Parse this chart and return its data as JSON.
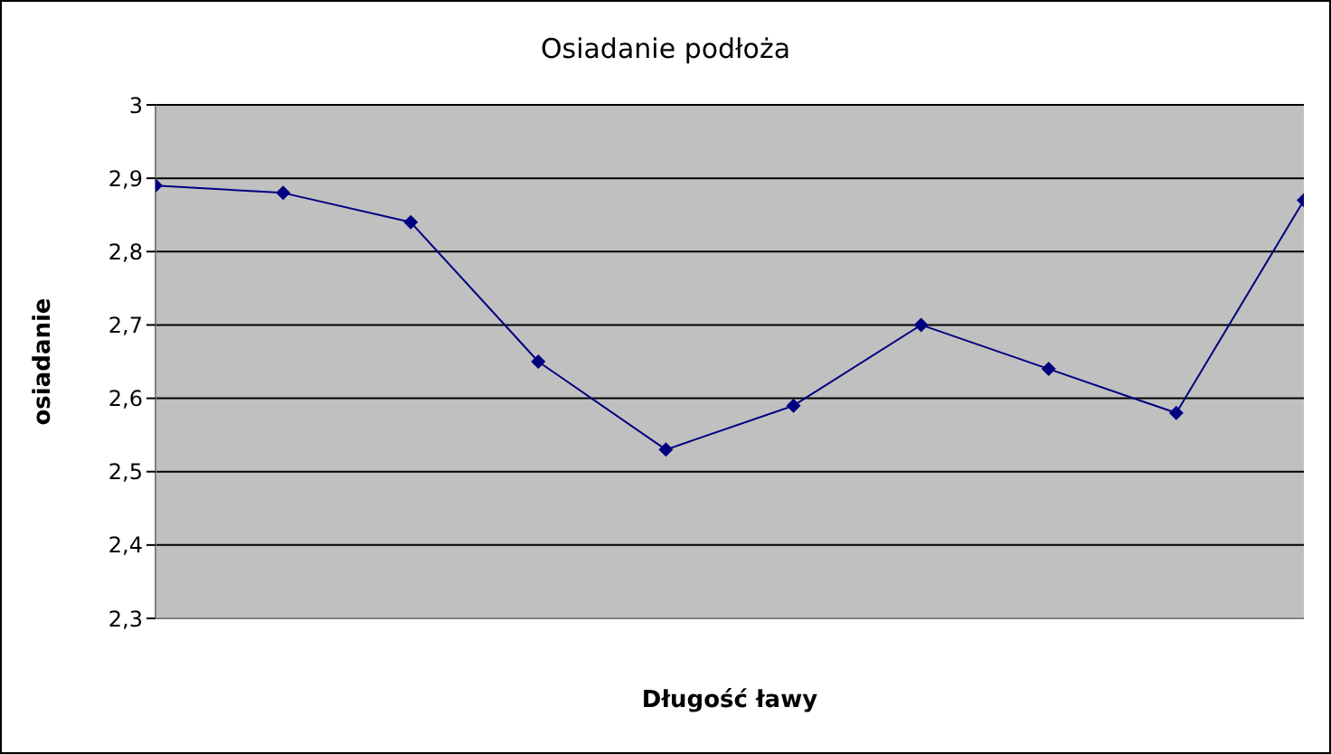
{
  "chart_data": {
    "type": "line",
    "title": "Osiadanie podłoża",
    "xlabel": "Długość ławy",
    "ylabel": "osiadanie",
    "categories": [
      null,
      null,
      null,
      null,
      null,
      null,
      null,
      null,
      null,
      null
    ],
    "series": [
      {
        "color": "#000080",
        "values": [
          2.89,
          2.88,
          2.84,
          2.65,
          2.53,
          2.59,
          2.7,
          2.64,
          2.58,
          2.87
        ]
      }
    ],
    "ylim": [
      2.3,
      3
    ],
    "yticks": [
      {
        "value": 2.3,
        "label": "2,3"
      },
      {
        "value": 2.4,
        "label": "2,4"
      },
      {
        "value": 2.5,
        "label": "2,5"
      },
      {
        "value": 2.6,
        "label": "2,6"
      },
      {
        "value": 2.7,
        "label": "2,7"
      },
      {
        "value": 2.8,
        "label": "2,8"
      },
      {
        "value": 2.9,
        "label": "2,9"
      },
      3
    ],
    "grid": "y",
    "legend": false,
    "marker": "diamond",
    "line_style": "solid",
    "tick_labels": "y"
  }
}
